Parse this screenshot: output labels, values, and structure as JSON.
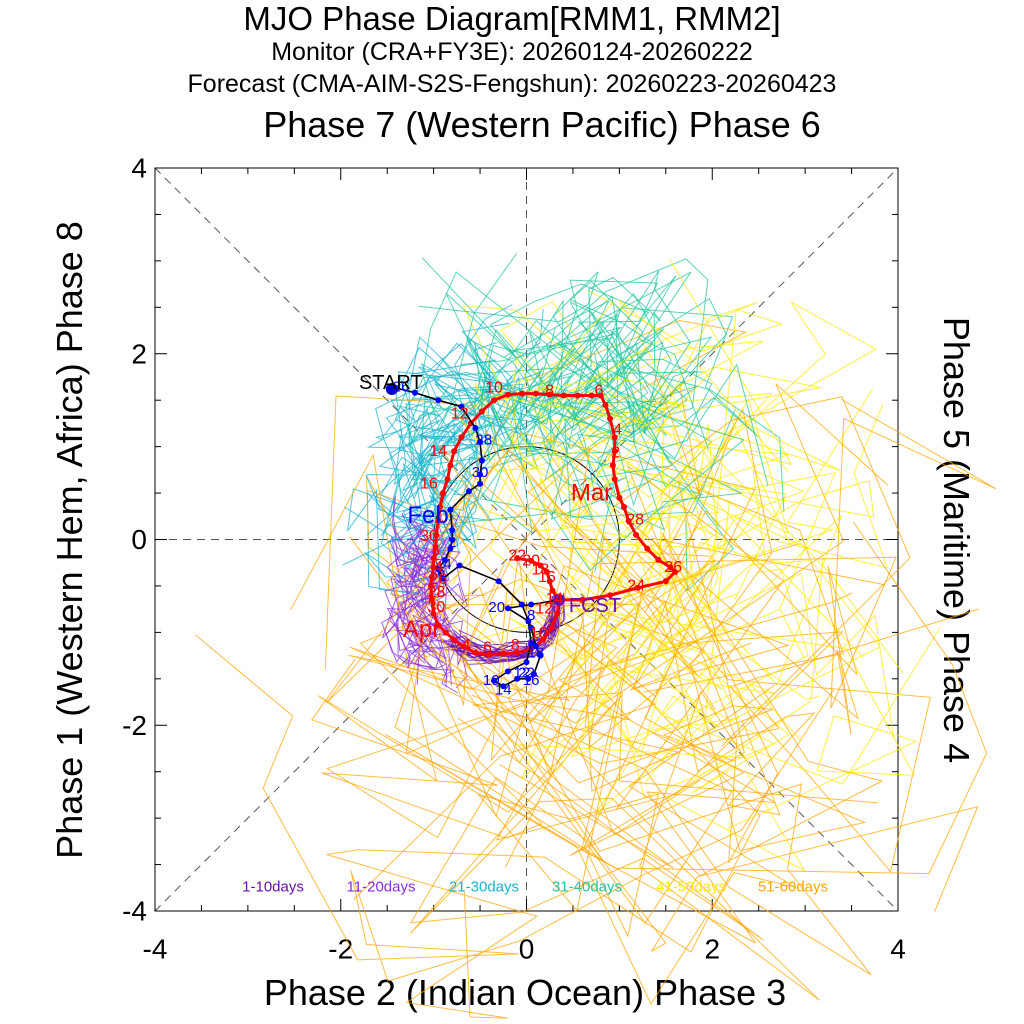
{
  "header": {
    "title": "MJO Phase Diagram[RMM1, RMM2]",
    "monitor": "Monitor (CRA+FY3E): 20260124-20260222",
    "forecast": "Forecast (CMA-AIM-S2S-Fengshun): 20260223-20260423"
  },
  "axis_labels": {
    "top": "Phase 7 (Western Pacific) Phase 6",
    "left": "Phase 1 (Western Hem, Africa) Phase 8",
    "right": "Phase 5 (Maritime) Phase 4",
    "bottom": "Phase 2 (Indian Ocean) Phase 3"
  },
  "chart_data": {
    "type": "line",
    "xlim": [
      -4,
      4
    ],
    "ylim": [
      -4,
      4
    ],
    "xticks": [
      -4,
      -2,
      0,
      2,
      4
    ],
    "yticks": [
      -4,
      -2,
      0,
      2,
      4
    ],
    "grid": "dashed phase boundaries",
    "observed": {
      "name": "Monitor",
      "color": "#000000",
      "dot_color": "#0000ff",
      "points": [
        [
          -1.45,
          1.62
        ],
        [
          -1.4,
          1.63
        ],
        [
          -1.2,
          1.58
        ],
        [
          -0.95,
          1.5
        ],
        [
          -0.7,
          1.43
        ],
        [
          -0.55,
          1.2
        ],
        [
          -0.5,
          1.05
        ],
        [
          -0.48,
          0.85
        ],
        [
          -0.5,
          0.7
        ],
        [
          -0.5,
          0.6
        ],
        [
          -0.62,
          0.52
        ],
        [
          -0.82,
          0.32
        ],
        [
          -0.8,
          0.1
        ],
        [
          -0.8,
          0.0
        ],
        [
          -0.82,
          -0.1
        ],
        [
          -0.88,
          -0.22
        ],
        [
          -0.95,
          -0.32
        ],
        [
          -0.9,
          -0.42
        ],
        [
          -0.72,
          -0.28
        ],
        [
          -0.3,
          -0.45
        ],
        [
          -0.05,
          -0.7
        ],
        [
          0.05,
          -0.95
        ],
        [
          0.1,
          -1.15
        ],
        [
          0.15,
          -1.25
        ],
        [
          0.08,
          -1.45
        ],
        [
          0.02,
          -1.5
        ],
        [
          -0.1,
          -1.5
        ],
        [
          -0.25,
          -1.58
        ],
        [
          -0.35,
          -1.52
        ],
        [
          -0.2,
          -1.42
        ],
        [
          0.0,
          -1.32
        ],
        [
          0.05,
          -1.12
        ],
        [
          0.02,
          -0.88
        ],
        [
          -0.2,
          -0.74
        ],
        [
          0.05,
          -0.7
        ],
        [
          0.35,
          -0.65
        ]
      ],
      "start_label": "START",
      "end_label": "FCST",
      "day_labels": [
        {
          "t": "26",
          "x": -1.35,
          "y": 1.64
        },
        {
          "t": "28",
          "x": -0.46,
          "y": 1.07
        },
        {
          "t": "30",
          "x": -0.5,
          "y": 0.72
        },
        {
          "t": "2",
          "x": -0.8,
          "y": -0.03
        },
        {
          "t": "4",
          "x": -0.85,
          "y": -0.27
        },
        {
          "t": "6",
          "x": -0.92,
          "y": -0.35
        },
        {
          "t": "8",
          "x": 0.05,
          "y": -0.82
        },
        {
          "t": "10",
          "x": -0.38,
          "y": -1.52
        },
        {
          "t": "12",
          "x": -0.05,
          "y": -1.44
        },
        {
          "t": "14",
          "x": -0.25,
          "y": -1.62
        },
        {
          "t": "16",
          "x": 0.05,
          "y": -1.52
        },
        {
          "t": "18",
          "x": 0.1,
          "y": -1.22
        },
        {
          "t": "20",
          "x": -0.32,
          "y": -0.73
        },
        {
          "t": "22",
          "x": 0.0,
          "y": -1.44
        }
      ]
    },
    "forecast": {
      "name": "Ensemble mean forecast",
      "color": "#ff0000",
      "points": [
        [
          0.35,
          -0.65
        ],
        [
          0.33,
          -0.8
        ],
        [
          0.27,
          -0.95
        ],
        [
          0.18,
          -1.08
        ],
        [
          0.05,
          -1.18
        ],
        [
          -0.1,
          -1.22
        ],
        [
          -0.25,
          -1.23
        ],
        [
          -0.4,
          -1.24
        ],
        [
          -0.55,
          -1.22
        ],
        [
          -0.68,
          -1.15
        ],
        [
          -0.78,
          -1.08
        ],
        [
          -0.87,
          -1.0
        ],
        [
          -0.95,
          -0.92
        ],
        [
          -1.0,
          -0.8
        ],
        [
          -1.02,
          -0.65
        ],
        [
          -1.03,
          -0.5
        ],
        [
          -1.02,
          -0.4
        ],
        [
          -1.0,
          -0.3
        ],
        [
          -1.0,
          -0.2
        ],
        [
          -0.98,
          -0.08
        ],
        [
          -0.97,
          0.05
        ],
        [
          -0.95,
          0.2
        ],
        [
          -0.93,
          0.35
        ],
        [
          -0.9,
          0.5
        ],
        [
          -0.85,
          0.65
        ],
        [
          -0.82,
          0.8
        ],
        [
          -0.78,
          0.95
        ],
        [
          -0.7,
          1.1
        ],
        [
          -0.6,
          1.25
        ],
        [
          -0.48,
          1.38
        ],
        [
          -0.35,
          1.5
        ],
        [
          -0.2,
          1.56
        ],
        [
          -0.05,
          1.57
        ],
        [
          0.1,
          1.57
        ],
        [
          0.25,
          1.56
        ],
        [
          0.4,
          1.55
        ],
        [
          0.55,
          1.55
        ],
        [
          0.7,
          1.55
        ],
        [
          0.8,
          1.55
        ],
        [
          0.85,
          1.45
        ],
        [
          0.9,
          1.3
        ],
        [
          0.95,
          1.1
        ],
        [
          0.95,
          0.95
        ],
        [
          0.93,
          0.8
        ],
        [
          0.95,
          0.65
        ],
        [
          1.0,
          0.45
        ],
        [
          1.05,
          0.35
        ],
        [
          1.1,
          0.2
        ],
        [
          1.18,
          0.05
        ],
        [
          1.3,
          -0.1
        ],
        [
          1.42,
          -0.22
        ],
        [
          1.55,
          -0.3
        ],
        [
          1.6,
          -0.35
        ],
        [
          1.5,
          -0.45
        ],
        [
          1.2,
          -0.52
        ],
        [
          0.9,
          -0.6
        ],
        [
          0.6,
          -0.65
        ],
        [
          0.35,
          -0.65
        ],
        [
          0.28,
          -0.55
        ],
        [
          0.25,
          -0.45
        ],
        [
          0.22,
          -0.35
        ],
        [
          0.15,
          -0.28
        ],
        [
          0.05,
          -0.23
        ],
        [
          -0.1,
          -0.2
        ]
      ],
      "labels": [
        {
          "t": "10",
          "x": -0.35,
          "y": 1.63
        },
        {
          "t": "8",
          "x": 0.25,
          "y": 1.6
        },
        {
          "t": "6",
          "x": 0.78,
          "y": 1.6
        },
        {
          "t": "4",
          "x": 0.98,
          "y": 1.18
        },
        {
          "t": "2",
          "x": 0.96,
          "y": 0.93
        },
        {
          "t": "Mar",
          "x": 0.7,
          "y": 0.5,
          "big": true
        },
        {
          "t": "28",
          "x": 1.17,
          "y": 0.21
        },
        {
          "t": "26",
          "x": 1.58,
          "y": -0.3
        },
        {
          "t": "24",
          "x": 1.18,
          "y": -0.5
        },
        {
          "t": "12",
          "x": -0.72,
          "y": 1.35
        },
        {
          "t": "14",
          "x": -0.95,
          "y": 0.95
        },
        {
          "t": "16",
          "x": -1.05,
          "y": 0.6
        },
        {
          "t": "30",
          "x": -1.05,
          "y": 0.03
        },
        {
          "t": "2",
          "x": -0.98,
          "y": -0.17
        },
        {
          "t": "4",
          "x": -0.95,
          "y": -0.3
        },
        {
          "t": "26",
          "x": -0.95,
          "y": -0.43
        },
        {
          "t": "28",
          "x": -0.97,
          "y": -0.57
        },
        {
          "t": "30",
          "x": -0.97,
          "y": -0.73
        },
        {
          "t": "Apr",
          "x": -1.13,
          "y": -0.97,
          "big": true
        },
        {
          "t": "4",
          "x": -0.65,
          "y": -1.14
        },
        {
          "t": "6",
          "x": -0.42,
          "y": -1.17
        },
        {
          "t": "8",
          "x": -0.12,
          "y": -1.14
        },
        {
          "t": "10",
          "x": 0.13,
          "y": -1.01
        },
        {
          "t": "12",
          "x": 0.19,
          "y": -0.75
        },
        {
          "t": "14",
          "x": 0.3,
          "y": -0.64
        },
        {
          "t": "16",
          "x": 0.22,
          "y": -0.41
        },
        {
          "t": "18",
          "x": 0.15,
          "y": -0.33
        },
        {
          "t": "20",
          "x": 0.05,
          "y": -0.23
        },
        {
          "t": "22",
          "x": -0.1,
          "y": -0.18
        },
        {
          "t": "Feb",
          "x": -1.06,
          "y": 0.26,
          "big": true,
          "color": "#0000ff"
        }
      ]
    },
    "ensemble_colors": [
      "#6a0dad",
      "#8a2be2",
      "#19b3d0",
      "#20c6a0",
      "#ffea00",
      "#ffa500"
    ],
    "legend": [
      "1-10days",
      "11-20days",
      "21-30days",
      "31-40days",
      "41-50days",
      "51-60days"
    ],
    "legend_placement": "bottom inside plot"
  }
}
